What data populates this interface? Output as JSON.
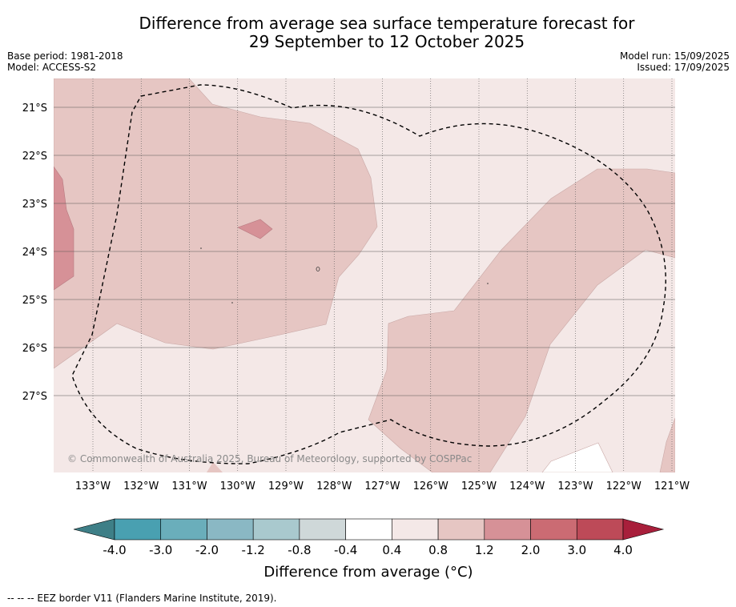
{
  "title": {
    "line1": "Difference from average sea surface temperature forecast for",
    "line2": "29 September to 12 October 2025"
  },
  "meta_left": {
    "base_period": "Base period: 1981-2018",
    "model": "Model: ACCESS-S2"
  },
  "meta_right": {
    "model_run": "Model run: 15/09/2025",
    "issued": "Issued: 17/09/2025"
  },
  "map": {
    "lat_labels": [
      "21°S",
      "22°S",
      "23°S",
      "24°S",
      "25°S",
      "26°S",
      "27°S"
    ],
    "lon_labels": [
      "133°W",
      "132°W",
      "131°W",
      "130°W",
      "129°W",
      "128°W",
      "127°W",
      "126°W",
      "125°W",
      "124°W",
      "123°W",
      "122°W",
      "121°W"
    ],
    "copyright": "© Commonwealth of Australia 2025, Bureau of Meteorology, supported by COSPPac",
    "fill_colors": {
      "0.4_to_0.8": "#f4e8e7",
      "0.8_to_1.2": "#e6c6c3",
      "1.2_to_2.0": "#d69197",
      "-0.4_to_0.4": "#ffffff"
    }
  },
  "colorbar": {
    "title": "Difference from average (°C)",
    "tick_labels": [
      "-4.0",
      "-3.0",
      "-2.0",
      "-1.2",
      "-0.8",
      "-0.4",
      "0.4",
      "0.8",
      "1.2",
      "2.0",
      "3.0",
      "4.0"
    ],
    "colors": [
      "#3e7f87",
      "#49a0b1",
      "#6aaebb",
      "#8ab8c4",
      "#a9c9ce",
      "#cfd8d9",
      "#ffffff",
      "#f4e8e7",
      "#e6c6c3",
      "#d69197",
      "#cb6b73",
      "#bd4a58",
      "#a81f3b"
    ]
  },
  "footer": {
    "text": "--  --  -- EEZ border V11 (Flanders Marine Institute, 2019)."
  }
}
